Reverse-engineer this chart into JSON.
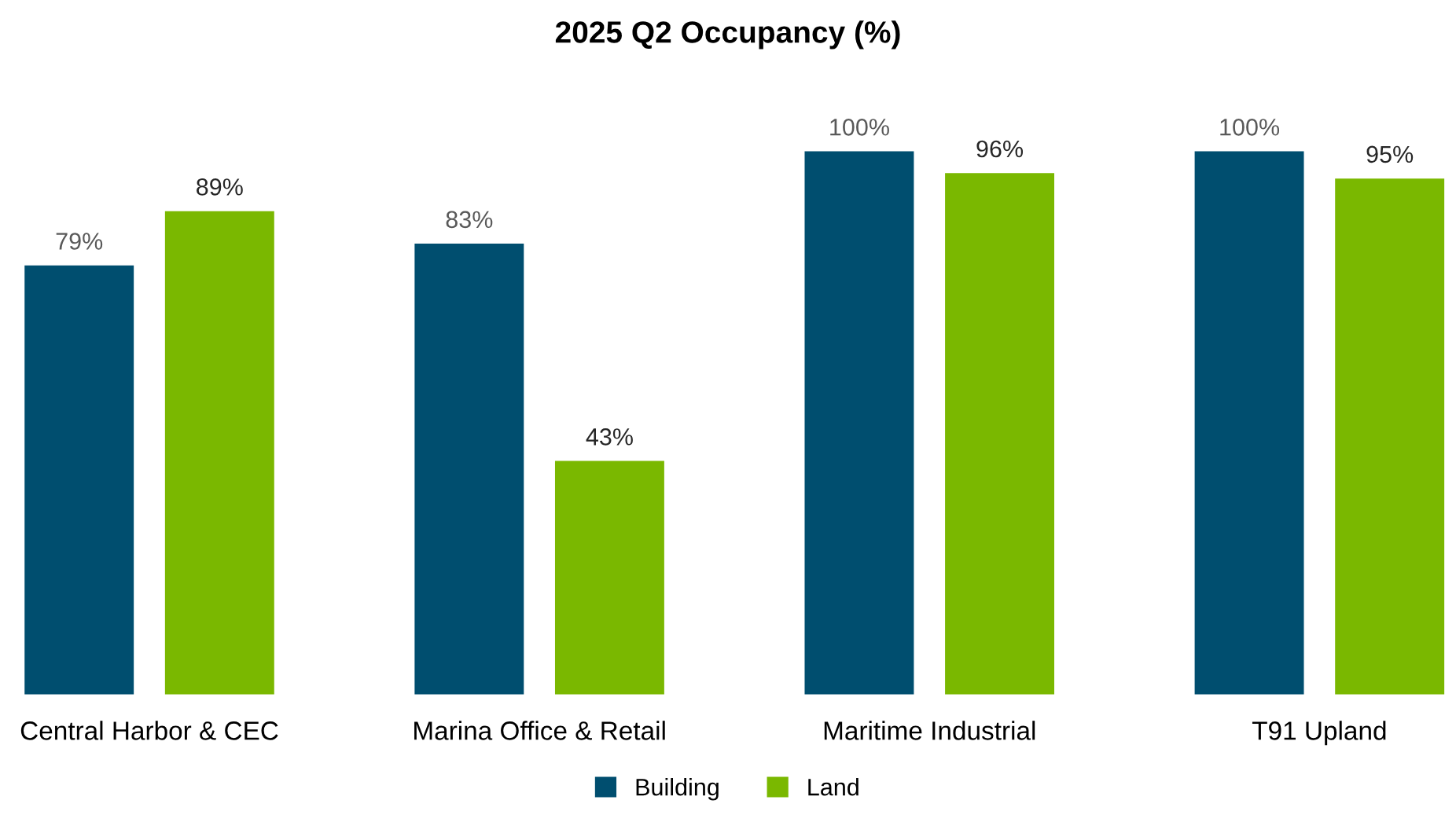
{
  "chart_data": {
    "type": "bar",
    "title": "2025 Q2 Occupancy (%)",
    "categories": [
      "Central Harbor & CEC",
      "Marina Office & Retail",
      "Maritime Industrial",
      "T91 Upland"
    ],
    "series": [
      {
        "name": "Building",
        "color": "#004e6f",
        "values": [
          79,
          83,
          100,
          100
        ],
        "value_labels": [
          "79%",
          "83%",
          "100%",
          "100%"
        ]
      },
      {
        "name": "Land",
        "color": "#7ab800",
        "values": [
          89,
          43,
          96,
          95
        ],
        "value_labels": [
          "89%",
          "43%",
          "96%",
          "95%"
        ]
      }
    ],
    "legend": "bottom",
    "grid": false
  }
}
